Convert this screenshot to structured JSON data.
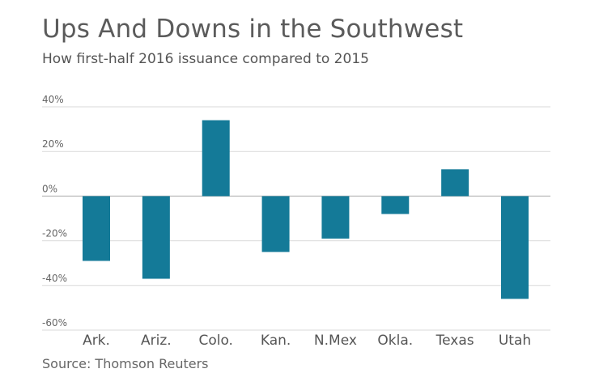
{
  "title": "Ups And Downs in the Southwest",
  "subtitle": "How first-half 2016 issuance compared to 2015",
  "source": "Source: Thomson Reuters",
  "colors": {
    "bar": "#147a98",
    "grid": "#d9d9d9",
    "zero_line": "#bdbdbd"
  },
  "chart_data": {
    "type": "bar",
    "title": "Ups And Downs in the Southwest",
    "subtitle": "How first-half 2016 issuance compared to 2015",
    "xlabel": "",
    "ylabel": "",
    "ylim": [
      -60,
      40
    ],
    "yticks": [
      40,
      20,
      0,
      -20,
      -40,
      -60
    ],
    "ytick_labels": [
      "40%",
      "20%",
      "0%",
      "-20%",
      "-40%",
      "-60%"
    ],
    "grid": true,
    "legend": "none",
    "categories": [
      "Ark.",
      "Ariz.",
      "Colo.",
      "Kan.",
      "N.Mex",
      "Okla.",
      "Texas",
      "Utah"
    ],
    "values": [
      -29,
      -37,
      34,
      -25,
      -19,
      -8,
      12,
      -46
    ]
  }
}
